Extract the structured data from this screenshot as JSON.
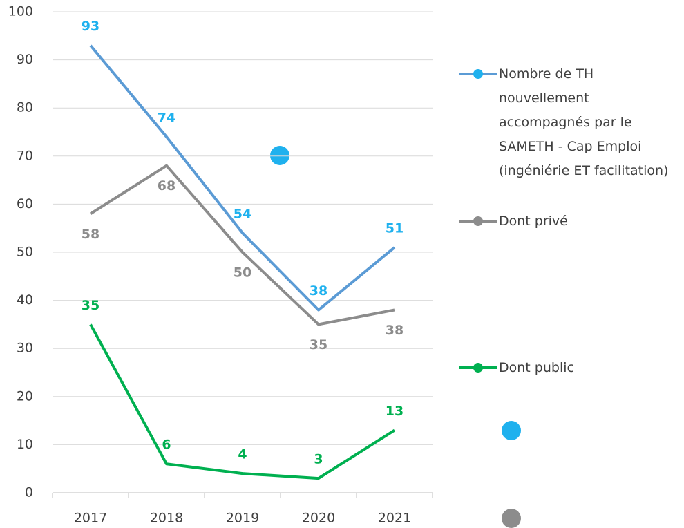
{
  "chart_data": {
    "type": "line",
    "categories": [
      "2017",
      "2018",
      "2019",
      "2020",
      "2021"
    ],
    "series": [
      {
        "name": "Nombre de TH nouvellement accompagnés par le SAMETH - Cap Emploi (ingéniérie ET facilitation)",
        "color": "#5b9bd5",
        "label_color": "#1fb1ee",
        "label_position": "above",
        "values": [
          93,
          74,
          54,
          38,
          51
        ]
      },
      {
        "name": "Dont privé",
        "color": "#8c8c8c",
        "label_color": "#8c8c8c",
        "label_position": "below",
        "values": [
          58,
          68,
          50,
          35,
          38
        ]
      },
      {
        "name": "Dont public",
        "color": "#00b050",
        "label_color": "#00b050",
        "label_position": "above",
        "values": [
          35,
          6,
          4,
          3,
          13
        ]
      }
    ],
    "ylim": [
      0,
      100
    ],
    "yticks": [
      0,
      10,
      20,
      30,
      40,
      50,
      60,
      70,
      80,
      90,
      100
    ],
    "grid": true,
    "legend": "right"
  }
}
